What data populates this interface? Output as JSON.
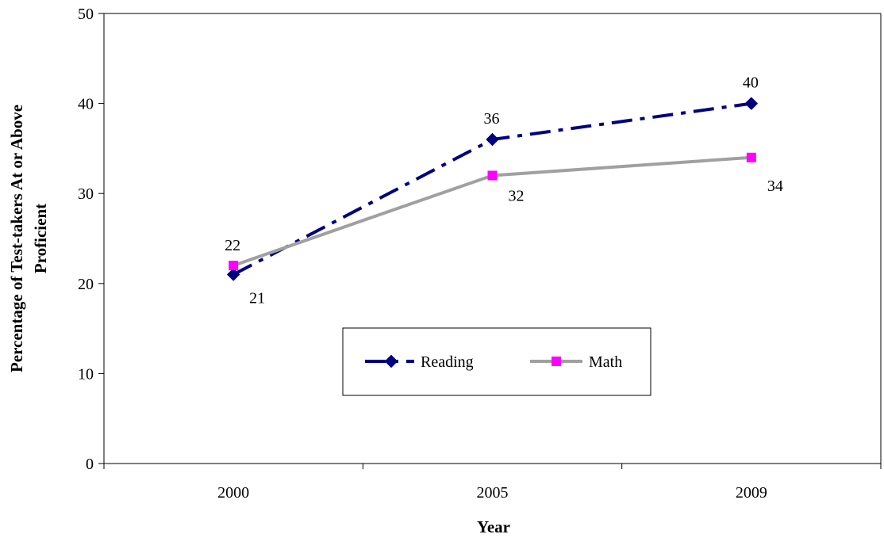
{
  "chart_data": {
    "type": "line",
    "categories": [
      "2000",
      "2005",
      "2009"
    ],
    "series": [
      {
        "name": "Reading",
        "values": [
          21,
          36,
          40
        ],
        "color": "#000080",
        "line_style": "dash-dot",
        "marker": "diamond"
      },
      {
        "name": "Math",
        "values": [
          22,
          32,
          34
        ],
        "color": "#A0A0A0",
        "marker_color": "#FF00FF",
        "line_style": "solid",
        "marker": "square"
      }
    ],
    "title": "",
    "xlabel": "Year",
    "ylabel_lines": [
      "Percentage of Test-takers At or Above",
      "Proficient"
    ],
    "ylim": [
      0,
      50
    ],
    "yticks": [
      0,
      10,
      20,
      30,
      40,
      50
    ],
    "grid": false,
    "legend": "center"
  }
}
